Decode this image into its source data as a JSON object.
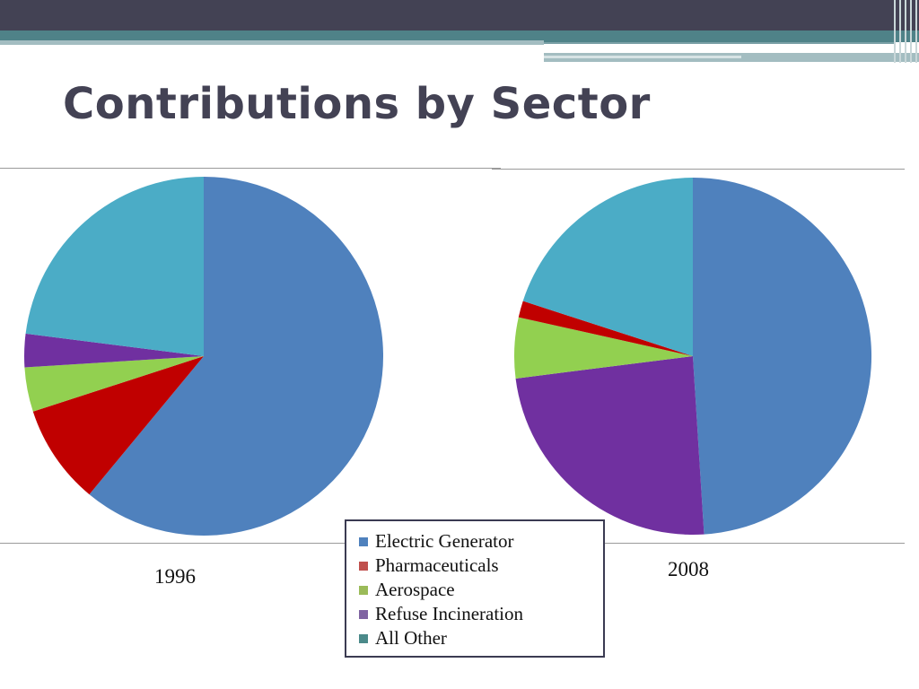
{
  "slide": {
    "title": "Contributions by Sector",
    "colors": {
      "header_dark": "#434254",
      "header_teal": "#4f8288",
      "title_text": "#434254"
    }
  },
  "chart_data": [
    {
      "type": "pie",
      "label": "1996",
      "slices": [
        {
          "name": "Electric Generator",
          "value": 61,
          "color": "#4f81bd"
        },
        {
          "name": "Pharmaceuticals",
          "value": 9,
          "color": "#c00000"
        },
        {
          "name": "Aerospace",
          "value": 4,
          "color": "#92d050"
        },
        {
          "name": "Refuse Incineration",
          "value": 3,
          "color": "#7030a0"
        },
        {
          "name": "All Other",
          "value": 23,
          "color": "#4bacc6"
        }
      ]
    },
    {
      "type": "pie",
      "label": "2008",
      "slices": [
        {
          "name": "Electric Generator",
          "value": 49,
          "color": "#4f81bd"
        },
        {
          "name": "Refuse Incineration",
          "value": 24,
          "color": "#7030a0"
        },
        {
          "name": "Aerospace",
          "value": 5.5,
          "color": "#92d050"
        },
        {
          "name": "Pharmaceuticals",
          "value": 1.5,
          "color": "#c00000"
        },
        {
          "name": "All Other",
          "value": 20,
          "color": "#4bacc6"
        }
      ]
    }
  ],
  "legend": {
    "placement": "bottom-center",
    "items": [
      {
        "name": "Electric Generator",
        "color": "#4f81bd"
      },
      {
        "name": "Pharmaceuticals",
        "color": "#c0504d"
      },
      {
        "name": "Aerospace",
        "color": "#9bbb59"
      },
      {
        "name": "Refuse Incineration",
        "color": "#8064a2"
      },
      {
        "name": "All Other",
        "color": "#4b8a8a"
      }
    ]
  }
}
